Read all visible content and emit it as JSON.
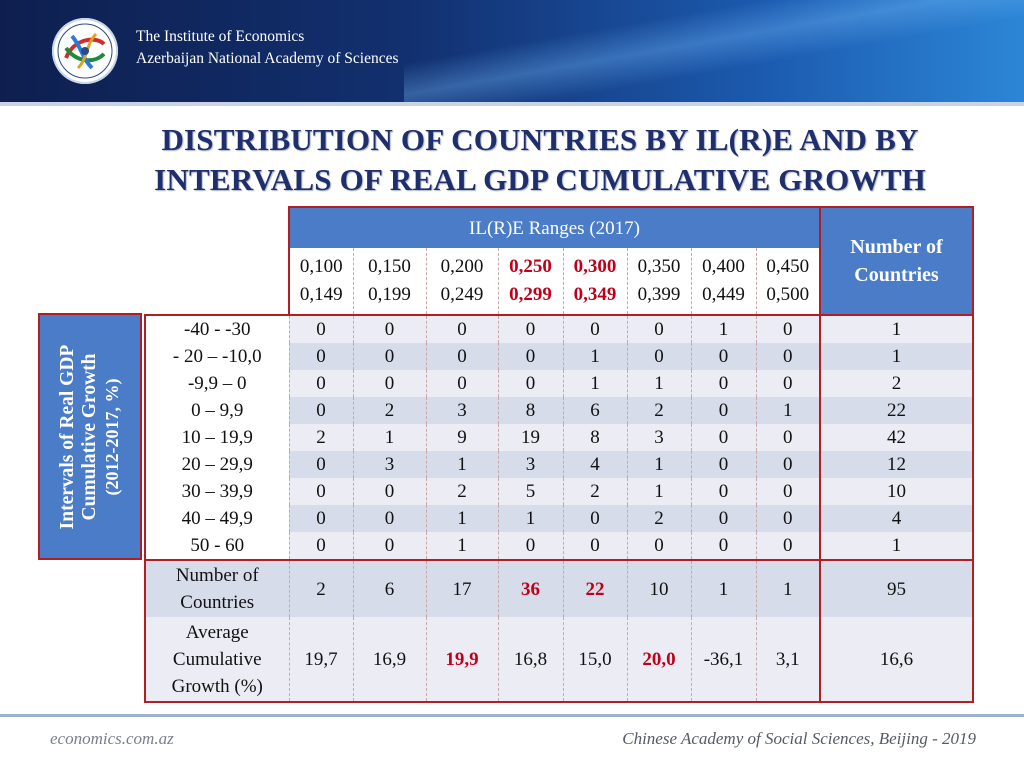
{
  "header": {
    "institute_line1": "The Institute of Economics",
    "institute_line2": "Azerbaijan National Academy of Sciences",
    "logo_icon": "institute-logo-icon"
  },
  "title": {
    "line1": "DISTRIBUTION OF COUNTRIES BY IL(R)E AND BY",
    "line2": "INTERVALS OF REAL GDP CUMULATIVE GROWTH"
  },
  "table": {
    "ranges_header": "IL(R)E Ranges (2017)",
    "count_header_line1": "Number of",
    "count_header_line2": "Countries",
    "row_axis_label_line1": "Intervals of Real GDP",
    "row_axis_label_line2": "Cumulative Growth",
    "row_axis_label_line3": "(2012-2017, %)",
    "ranges": [
      {
        "from": "0,100",
        "to": "0,149"
      },
      {
        "from": "0,150",
        "to": "0,199"
      },
      {
        "from": "0,200",
        "to": "0,249"
      },
      {
        "from": "0,250",
        "to": "0,299"
      },
      {
        "from": "0,300",
        "to": "0,349"
      },
      {
        "from": "0,350",
        "to": "0,399"
      },
      {
        "from": "0,400",
        "to": "0,449"
      },
      {
        "from": "0,450",
        "to": "0,500"
      }
    ],
    "rows": [
      {
        "label": "-40 - -30",
        "values": [
          "0",
          "0",
          "0",
          "0",
          "0",
          "0",
          "1",
          "0"
        ],
        "total": "1"
      },
      {
        "label": "- 20 – -10,0",
        "values": [
          "0",
          "0",
          "0",
          "0",
          "1",
          "0",
          "0",
          "0"
        ],
        "total": "1"
      },
      {
        "label": "-9,9 – 0",
        "values": [
          "0",
          "0",
          "0",
          "0",
          "1",
          "1",
          "0",
          "0"
        ],
        "total": "2"
      },
      {
        "label": "0 – 9,9",
        "values": [
          "0",
          "2",
          "3",
          "8",
          "6",
          "2",
          "0",
          "1"
        ],
        "total": "22"
      },
      {
        "label": "10 – 19,9",
        "values": [
          "2",
          "1",
          "9",
          "19",
          "8",
          "3",
          "0",
          "0"
        ],
        "total": "42"
      },
      {
        "label": "20 – 29,9",
        "values": [
          "0",
          "3",
          "1",
          "3",
          "4",
          "1",
          "0",
          "0"
        ],
        "total": "12"
      },
      {
        "label": "30 – 39,9",
        "values": [
          "0",
          "0",
          "2",
          "5",
          "2",
          "1",
          "0",
          "0"
        ],
        "total": "10"
      },
      {
        "label": "40 – 49,9",
        "values": [
          "0",
          "0",
          "1",
          "1",
          "0",
          "2",
          "0",
          "0"
        ],
        "total": "4"
      },
      {
        "label": "50 - 60",
        "values": [
          "0",
          "0",
          "1",
          "0",
          "0",
          "0",
          "0",
          "0"
        ],
        "total": "1"
      }
    ],
    "count_row": {
      "label_line1": "Number of",
      "label_line2": "Countries",
      "values": [
        "2",
        "6",
        "17",
        "36",
        "22",
        "10",
        "1",
        "1"
      ],
      "total": "95"
    },
    "avg_row": {
      "label_line1": "Average",
      "label_line2": "Cumulative",
      "label_line3": "Growth (%)",
      "values": [
        "19,7",
        "16,9",
        "19,9",
        "16,8",
        "15,0",
        "20,0",
        "-36,1",
        "3,1"
      ],
      "total": "16,6"
    },
    "highlight_color": "#c0001a"
  },
  "footer": {
    "left": "economics.com.az",
    "right": "Chinese Academy of Social Sciences, Beijing - 2019"
  }
}
